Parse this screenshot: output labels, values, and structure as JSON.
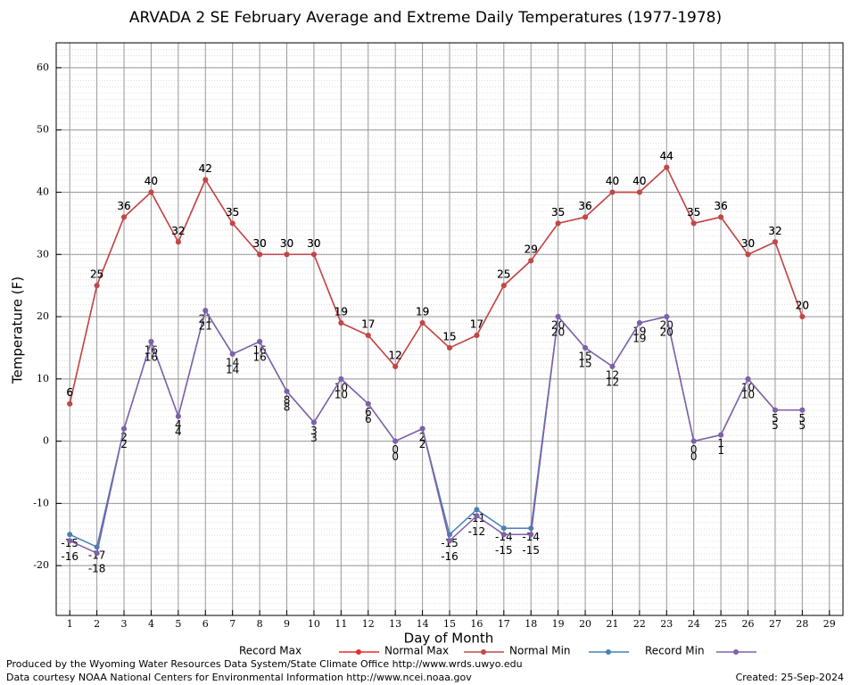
{
  "chart_data": {
    "type": "line",
    "title": "ARVADA 2 SE February Average and Extreme Daily Temperatures (1977-1978)",
    "x_label": "Day of Month",
    "y_label": "Temperature (F)",
    "x": [
      1,
      2,
      3,
      4,
      5,
      6,
      7,
      8,
      9,
      10,
      11,
      12,
      13,
      14,
      15,
      16,
      17,
      18,
      19,
      20,
      21,
      22,
      23,
      24,
      25,
      26,
      27,
      28
    ],
    "xlim": [
      0.5,
      29.5
    ],
    "xticks": [
      1,
      2,
      3,
      4,
      5,
      6,
      7,
      8,
      9,
      10,
      11,
      12,
      13,
      14,
      15,
      16,
      17,
      18,
      19,
      20,
      21,
      22,
      23,
      24,
      25,
      26,
      27,
      28,
      29
    ],
    "ylim": [
      -28,
      64
    ],
    "yticks": [
      -20,
      -10,
      0,
      10,
      20,
      30,
      40,
      50,
      60
    ],
    "grid": true,
    "series": [
      {
        "name": "Record Max",
        "color": "#e03030",
        "values": [
          6,
          25,
          36,
          40,
          32,
          42,
          35,
          30,
          30,
          30,
          19,
          17,
          12,
          19,
          15,
          17,
          25,
          29,
          35,
          36,
          40,
          40,
          44,
          35,
          36,
          30,
          32,
          20
        ]
      },
      {
        "name": "Normal Max",
        "color": "#c04848",
        "values": [
          6,
          25,
          36,
          40,
          32,
          42,
          35,
          30,
          30,
          30,
          19,
          17,
          12,
          19,
          15,
          17,
          25,
          29,
          35,
          36,
          40,
          40,
          44,
          35,
          36,
          30,
          32,
          20
        ]
      },
      {
        "name": "Normal Min",
        "color": "#4682b4",
        "values": [
          -15,
          -17,
          2,
          16,
          4,
          21,
          14,
          16,
          8,
          3,
          10,
          6,
          0,
          2,
          -15,
          -11,
          -14,
          -14,
          20,
          15,
          12,
          19,
          20,
          0,
          1,
          10,
          5,
          5
        ]
      },
      {
        "name": "Record Min",
        "color": "#8060a8",
        "values": [
          -16,
          -18,
          2,
          16,
          4,
          21,
          14,
          16,
          8,
          3,
          10,
          6,
          0,
          2,
          -16,
          -12,
          -15,
          -15,
          20,
          15,
          12,
          19,
          20,
          0,
          1,
          10,
          5,
          5
        ]
      }
    ]
  },
  "footer": {
    "left": [
      "Produced by the Wyoming Water Resources Data System/State Climate Office http://www.wrds.uwyo.edu",
      "Data courtesy NOAA National Centers for Environmental Information http://www.ncei.noaa.gov"
    ],
    "right": "Created: 25-Sep-2024"
  }
}
